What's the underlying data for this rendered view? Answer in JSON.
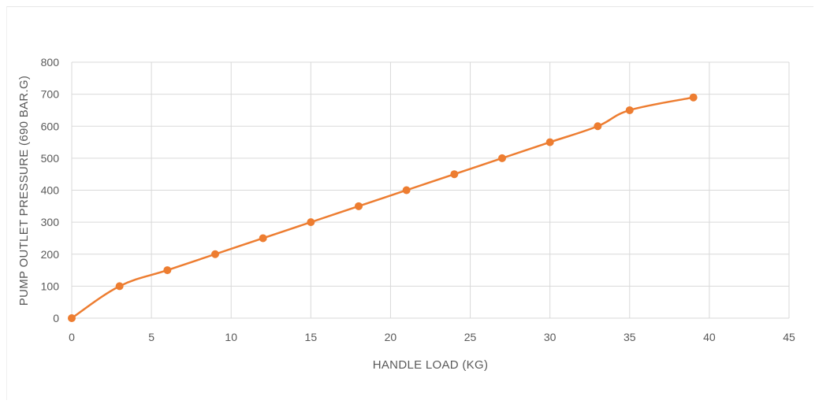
{
  "chart_data": {
    "type": "line",
    "title": "",
    "xlabel": "HANDLE LOAD (KG)",
    "ylabel": "PUMP OUTLET PRESSURE (690 BAR.G)",
    "xlim": [
      0,
      45
    ],
    "ylim": [
      0,
      800
    ],
    "xticks": [
      0,
      5,
      10,
      15,
      20,
      25,
      30,
      35,
      40,
      45
    ],
    "yticks": [
      0,
      100,
      200,
      300,
      400,
      500,
      600,
      700,
      800
    ],
    "grid": true,
    "legend": "none",
    "series": [
      {
        "color": "#ed7d31",
        "x": [
          0,
          3,
          6,
          9,
          12,
          15,
          18,
          21,
          24,
          27,
          30,
          33,
          35,
          39
        ],
        "y": [
          0,
          100,
          150,
          200,
          250,
          300,
          350,
          400,
          450,
          500,
          550,
          600,
          650,
          690
        ]
      }
    ]
  }
}
